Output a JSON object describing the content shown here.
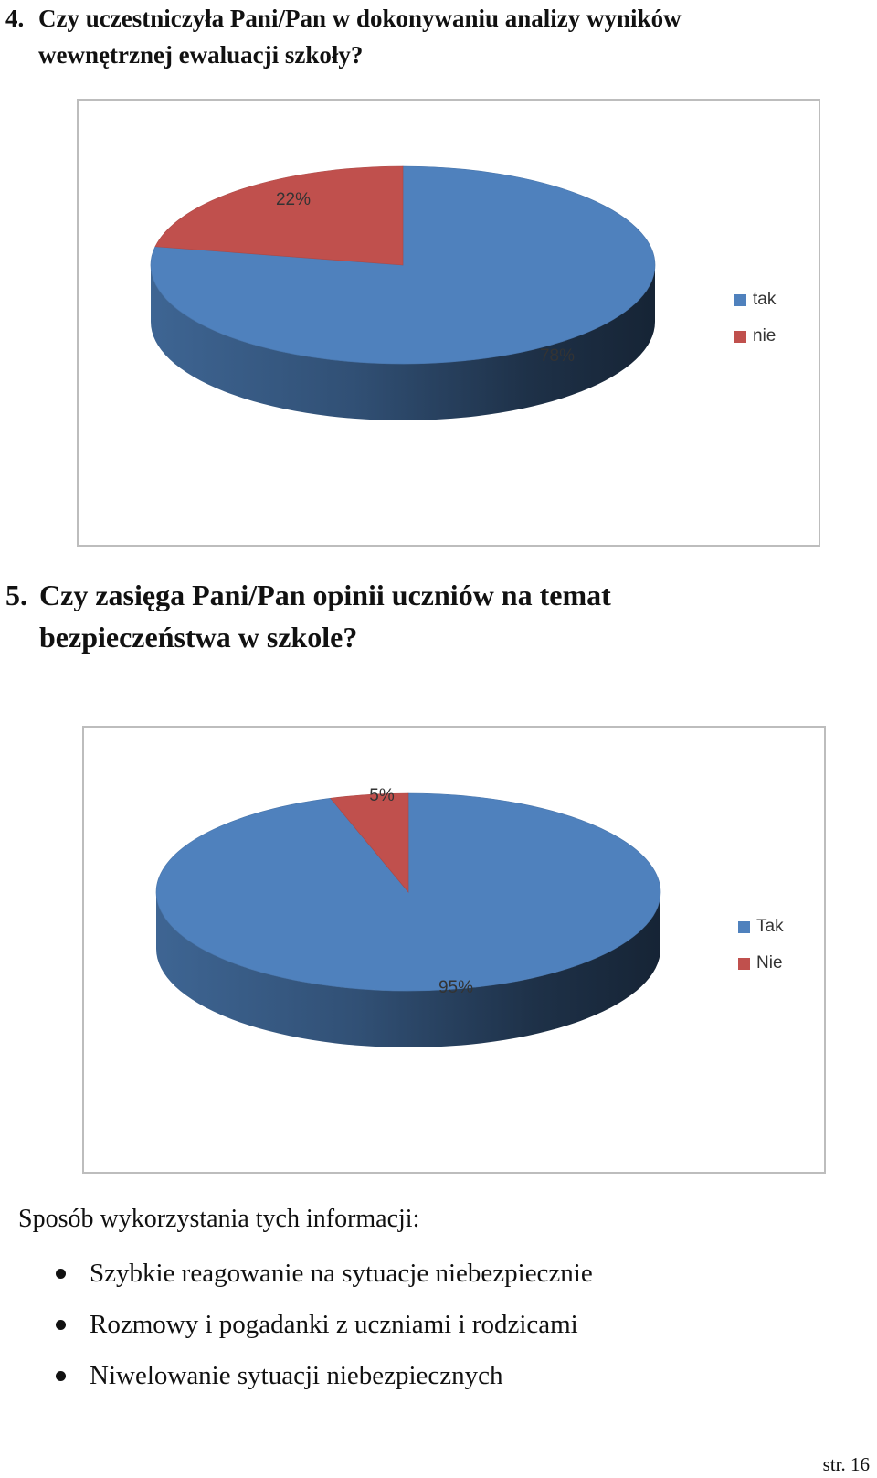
{
  "question4": {
    "number": "4.",
    "line1": "Czy uczestniczyła Pani/Pan  w dokonywaniu analizy wyników",
    "line2": "wewnętrznej ewaluacji szkoły?"
  },
  "question5": {
    "number": "5.",
    "line1": "Czy zasięga Pani/Pan opinii uczniów na temat",
    "line2": "bezpieczeństwa w szkole?"
  },
  "chart_data": [
    {
      "type": "pie",
      "title": "",
      "categories": [
        "tak",
        "nie"
      ],
      "values": [
        78,
        22
      ],
      "labels": [
        "78%",
        "22%"
      ],
      "colors": [
        "#4f81bd",
        "#c0504d"
      ],
      "legend": "right",
      "style": "3d"
    },
    {
      "type": "pie",
      "title": "",
      "categories": [
        "Tak",
        "Nie"
      ],
      "values": [
        95,
        5
      ],
      "labels": [
        "95%",
        "5%"
      ],
      "colors": [
        "#4f81bd",
        "#c0504d"
      ],
      "legend": "right",
      "style": "3d"
    }
  ],
  "section": {
    "title": "Sposób wykorzystania tych informacji:",
    "items": [
      "Szybkie reagowanie na sytuacje niebezpiecznie",
      "Rozmowy i pogadanki z uczniami i rodzicami",
      "Niwelowanie sytuacji niebezpiecznych"
    ]
  },
  "page_number": "str. 16"
}
